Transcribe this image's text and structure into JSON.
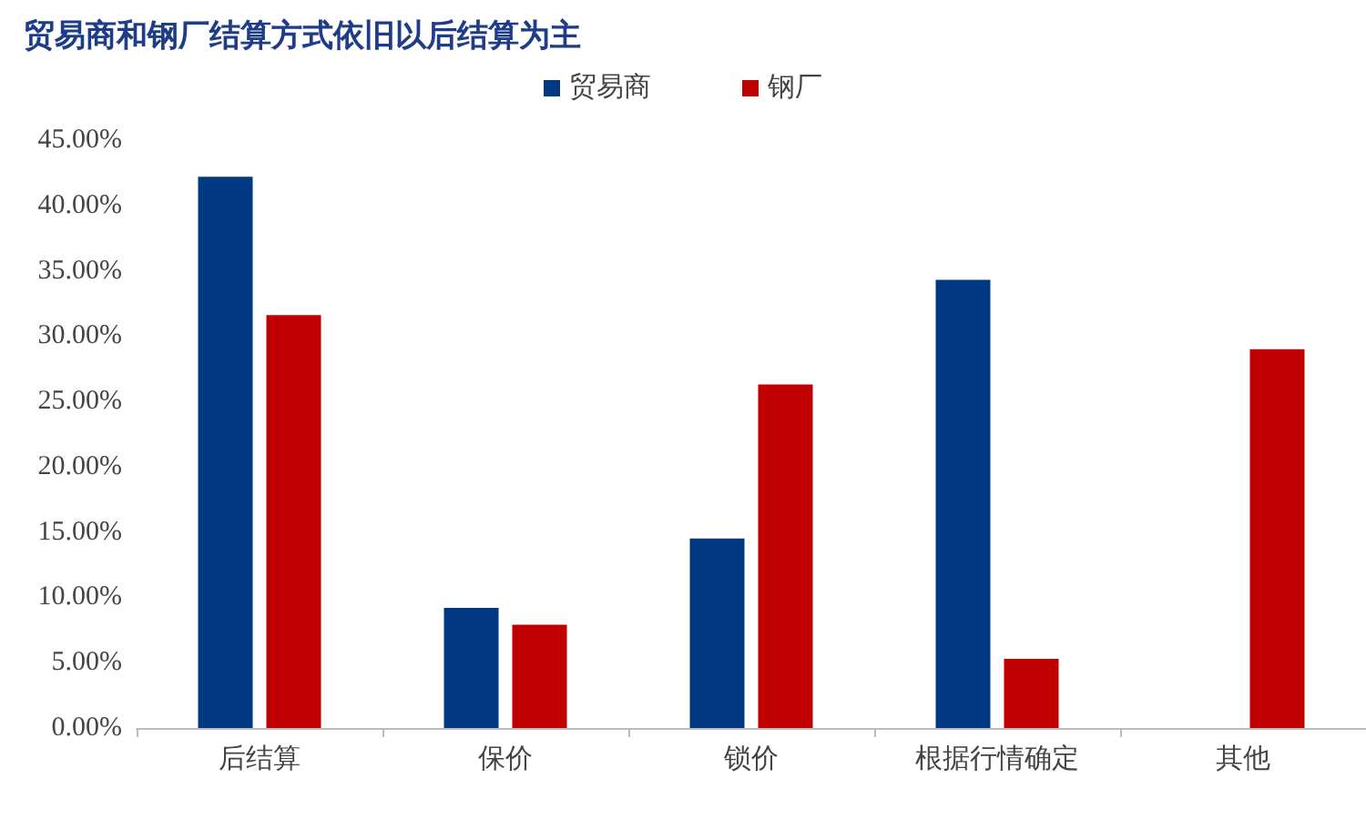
{
  "chart_data": {
    "type": "bar",
    "title": "贸易商和钢厂结算方式依旧以后结算为主",
    "categories": [
      "后结算",
      "保价",
      "锁价",
      "根据行情确定",
      "其他"
    ],
    "series": [
      {
        "name": "贸易商",
        "color": "#003882",
        "values": [
          42.2,
          9.2,
          14.5,
          34.3,
          0
        ]
      },
      {
        "name": "钢厂",
        "color": "#c00000",
        "values": [
          31.6,
          7.9,
          26.3,
          5.3,
          29.0
        ]
      }
    ],
    "ylim": [
      0,
      45
    ],
    "yticks": [
      {
        "value": 0,
        "label": "0.00%"
      },
      {
        "value": 5,
        "label": "5.00%"
      },
      {
        "value": 10,
        "label": "10.00%"
      },
      {
        "value": 15,
        "label": "15.00%"
      },
      {
        "value": 20,
        "label": "20.00%"
      },
      {
        "value": 25,
        "label": "25.00%"
      },
      {
        "value": 30,
        "label": "30.00%"
      },
      {
        "value": 35,
        "label": "35.00%"
      },
      {
        "value": 40,
        "label": "40.00%"
      },
      {
        "value": 45,
        "label": "45.00%"
      }
    ],
    "grid": false,
    "legend": "top"
  }
}
